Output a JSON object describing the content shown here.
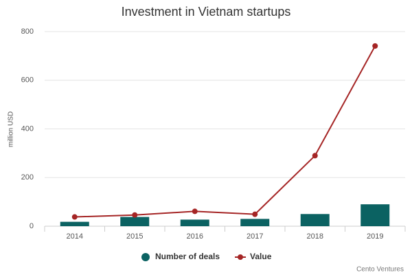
{
  "chart_data": {
    "type": "combo",
    "title": "Investment in Vietnam startups",
    "y_label": "million USD",
    "categories": [
      "2014",
      "2015",
      "2016",
      "2017",
      "2018",
      "2019"
    ],
    "series": [
      {
        "name": "Number of deals",
        "type": "bar",
        "color": "#0b6262",
        "values": [
          18,
          38,
          27,
          30,
          50,
          90
        ]
      },
      {
        "name": "Value",
        "type": "line",
        "color": "#a52525",
        "values": [
          38,
          46,
          61,
          49,
          290,
          741
        ]
      }
    ],
    "ylim": [
      0,
      800
    ],
    "yticks": [
      0,
      200,
      400,
      600,
      800
    ],
    "grid": true,
    "legend": "bottom",
    "source": "Cento Ventures"
  }
}
